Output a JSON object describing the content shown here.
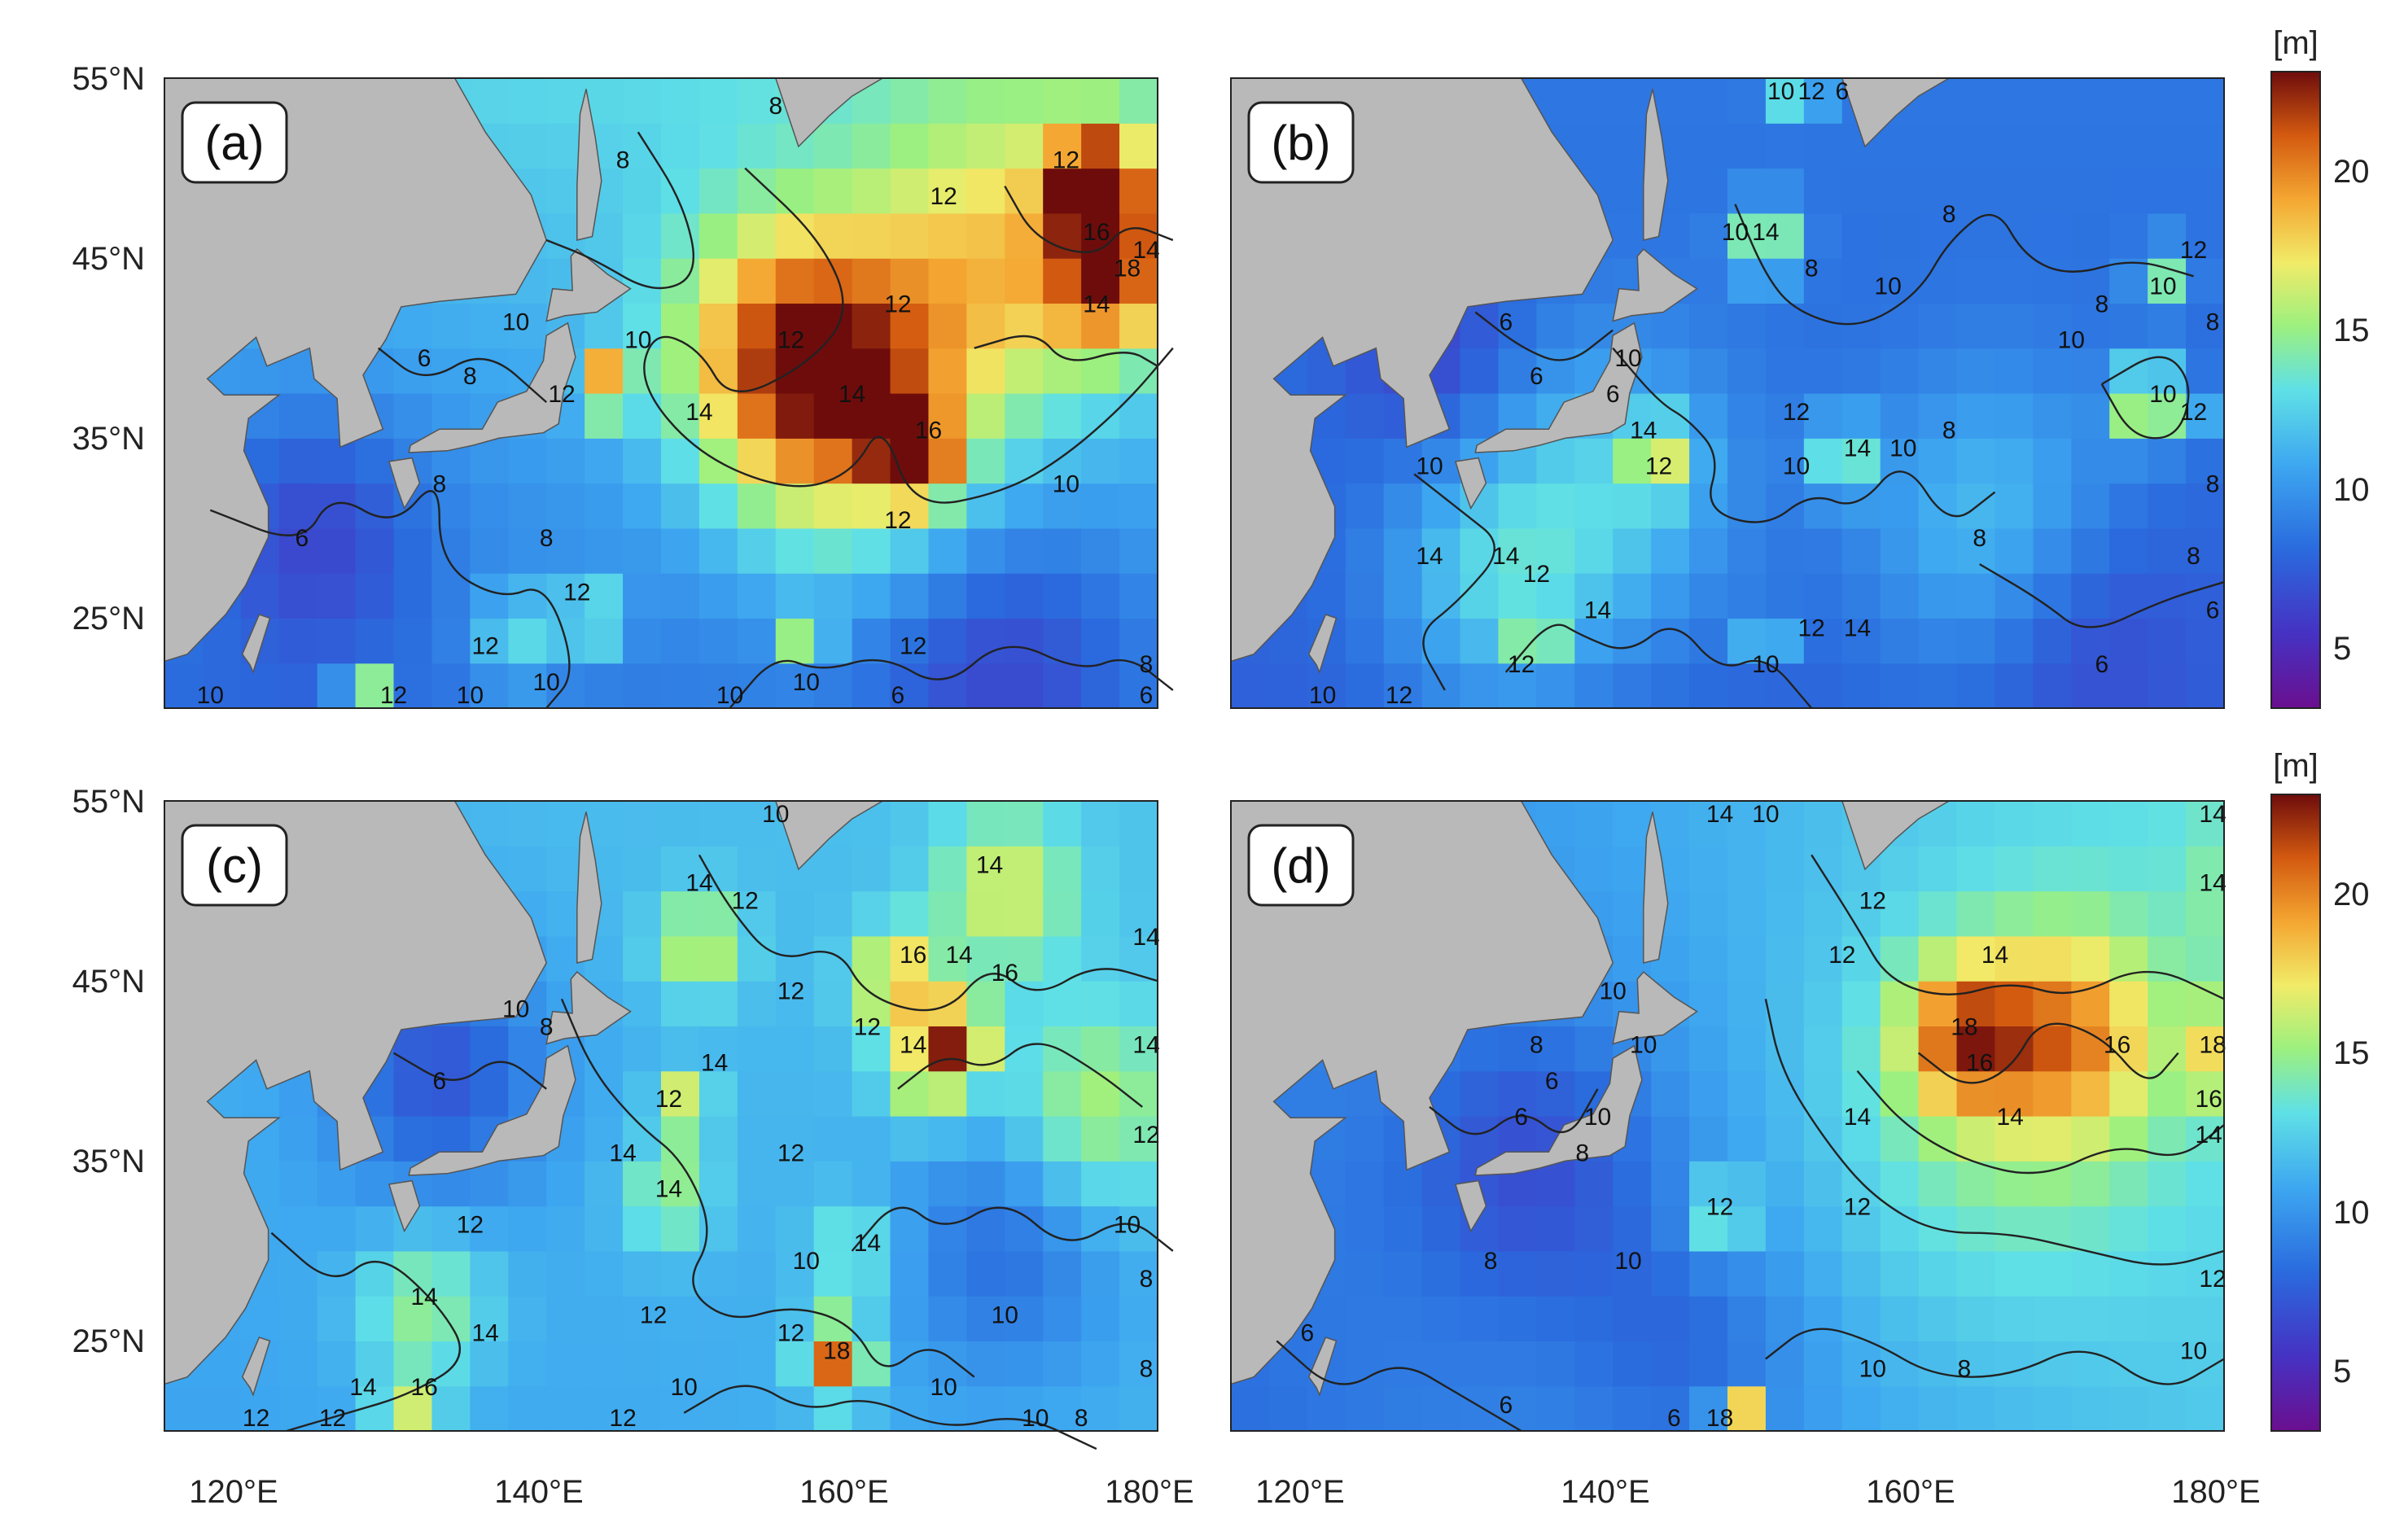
{
  "figure": {
    "lat_labels": [
      "55°N",
      "45°N",
      "35°N",
      "25°N"
    ],
    "lon_labels": [
      "120°E",
      "140°E",
      "160°E",
      "180°E"
    ],
    "colorbar": {
      "unit": "[m]",
      "ticks": [
        "20",
        "15",
        "10",
        "5"
      ],
      "range": [
        3,
        23
      ]
    },
    "panels": [
      {
        "label": "(a)",
        "contour_labels": [
          {
            "text": "8",
            "lon": 145,
            "lat": 50
          },
          {
            "text": "8",
            "lon": 155,
            "lat": 53
          },
          {
            "text": "12",
            "lon": 166,
            "lat": 48
          },
          {
            "text": "12",
            "lon": 174,
            "lat": 50
          },
          {
            "text": "12",
            "lon": 156,
            "lat": 40
          },
          {
            "text": "12",
            "lon": 163,
            "lat": 42
          },
          {
            "text": "14",
            "lon": 150,
            "lat": 36
          },
          {
            "text": "14",
            "lon": 160,
            "lat": 37
          },
          {
            "text": "16",
            "lon": 176,
            "lat": 46
          },
          {
            "text": "18",
            "lon": 178,
            "lat": 44
          },
          {
            "text": "14",
            "lon": 176,
            "lat": 42
          },
          {
            "text": "14",
            "lon": 180,
            "lat": 45
          },
          {
            "text": "16",
            "lon": 165,
            "lat": 35
          },
          {
            "text": "12",
            "lon": 163,
            "lat": 30
          },
          {
            "text": "10",
            "lon": 146,
            "lat": 40
          },
          {
            "text": "10",
            "lon": 138,
            "lat": 41
          },
          {
            "text": "12",
            "lon": 141,
            "lat": 37
          },
          {
            "text": "6",
            "lon": 132,
            "lat": 39
          },
          {
            "text": "8",
            "lon": 135,
            "lat": 38
          },
          {
            "text": "6",
            "lon": 124,
            "lat": 29
          },
          {
            "text": "8",
            "lon": 133,
            "lat": 32
          },
          {
            "text": "8",
            "lon": 140,
            "lat": 29
          },
          {
            "text": "12",
            "lon": 142,
            "lat": 26
          },
          {
            "text": "12",
            "lon": 136,
            "lat": 23
          },
          {
            "text": "12",
            "lon": 130,
            "lat": 20
          },
          {
            "text": "10",
            "lon": 140,
            "lat": 21
          },
          {
            "text": "10",
            "lon": 135,
            "lat": 20
          },
          {
            "text": "10",
            "lon": 152,
            "lat": 20
          },
          {
            "text": "10",
            "lon": 157,
            "lat": 21
          },
          {
            "text": "12",
            "lon": 164,
            "lat": 23
          },
          {
            "text": "6",
            "lon": 163,
            "lat": 18
          },
          {
            "text": "10",
            "lon": 174,
            "lat": 32
          },
          {
            "text": "8",
            "lon": 183,
            "lat": 22
          },
          {
            "text": "6",
            "lon": 180,
            "lat": 20
          },
          {
            "text": "10",
            "lon": 118,
            "lat": 19
          }
        ]
      },
      {
        "label": "(b)",
        "contour_labels": [
          {
            "text": "10",
            "lon": 151,
            "lat": 56
          },
          {
            "text": "12",
            "lon": 153,
            "lat": 55
          },
          {
            "text": "6",
            "lon": 155,
            "lat": 55
          },
          {
            "text": "10",
            "lon": 148,
            "lat": 46
          },
          {
            "text": "14",
            "lon": 150,
            "lat": 46
          },
          {
            "text": "8",
            "lon": 153,
            "lat": 44
          },
          {
            "text": "10",
            "lon": 158,
            "lat": 43
          },
          {
            "text": "8",
            "lon": 162,
            "lat": 47
          },
          {
            "text": "10",
            "lon": 141,
            "lat": 39
          },
          {
            "text": "6",
            "lon": 133,
            "lat": 41
          },
          {
            "text": "6",
            "lon": 135,
            "lat": 38
          },
          {
            "text": "6",
            "lon": 140,
            "lat": 37
          },
          {
            "text": "14",
            "lon": 142,
            "lat": 35
          },
          {
            "text": "12",
            "lon": 143,
            "lat": 33
          },
          {
            "text": "12",
            "lon": 152,
            "lat": 36
          },
          {
            "text": "10",
            "lon": 152,
            "lat": 33
          },
          {
            "text": "14",
            "lon": 156,
            "lat": 34
          },
          {
            "text": "10",
            "lon": 159,
            "lat": 34
          },
          {
            "text": "8",
            "lon": 162,
            "lat": 35
          },
          {
            "text": "10",
            "lon": 170,
            "lat": 40
          },
          {
            "text": "10",
            "lon": 176,
            "lat": 43
          },
          {
            "text": "8",
            "lon": 172,
            "lat": 42
          },
          {
            "text": "12",
            "lon": 178,
            "lat": 45
          },
          {
            "text": "8",
            "lon": 180,
            "lat": 41
          },
          {
            "text": "10",
            "lon": 176,
            "lat": 37
          },
          {
            "text": "12",
            "lon": 178,
            "lat": 36
          },
          {
            "text": "8",
            "lon": 182,
            "lat": 32
          },
          {
            "text": "8",
            "lon": 178,
            "lat": 28
          },
          {
            "text": "8",
            "lon": 164,
            "lat": 29
          },
          {
            "text": "6",
            "lon": 182,
            "lat": 25
          },
          {
            "text": "6",
            "lon": 172,
            "lat": 22
          },
          {
            "text": "10",
            "lon": 128,
            "lat": 33
          },
          {
            "text": "14",
            "lon": 128,
            "lat": 28
          },
          {
            "text": "14",
            "lon": 133,
            "lat": 28
          },
          {
            "text": "12",
            "lon": 135,
            "lat": 27
          },
          {
            "text": "14",
            "lon": 139,
            "lat": 25
          },
          {
            "text": "12",
            "lon": 134,
            "lat": 22
          },
          {
            "text": "10",
            "lon": 150,
            "lat": 22
          },
          {
            "text": "12",
            "lon": 153,
            "lat": 24
          },
          {
            "text": "14",
            "lon": 156,
            "lat": 24
          },
          {
            "text": "12",
            "lon": 126,
            "lat": 19
          },
          {
            "text": "10",
            "lon": 121,
            "lat": 20
          }
        ]
      },
      {
        "label": "(c)",
        "contour_labels": [
          {
            "text": "10",
            "lon": 155,
            "lat": 54
          },
          {
            "text": "14",
            "lon": 150,
            "lat": 50
          },
          {
            "text": "12",
            "lon": 153,
            "lat": 49
          },
          {
            "text": "14",
            "lon": 169,
            "lat": 51
          },
          {
            "text": "14",
            "lon": 180,
            "lat": 47
          },
          {
            "text": "16",
            "lon": 164,
            "lat": 46
          },
          {
            "text": "14",
            "lon": 167,
            "lat": 46
          },
          {
            "text": "16",
            "lon": 170,
            "lat": 45
          },
          {
            "text": "12",
            "lon": 156,
            "lat": 44
          },
          {
            "text": "12",
            "lon": 161,
            "lat": 42
          },
          {
            "text": "14",
            "lon": 164,
            "lat": 41
          },
          {
            "text": "14",
            "lon": 180,
            "lat": 41
          },
          {
            "text": "12",
            "lon": 180,
            "lat": 36
          },
          {
            "text": "10",
            "lon": 178,
            "lat": 31
          },
          {
            "text": "8",
            "lon": 180,
            "lat": 28
          },
          {
            "text": "10",
            "lon": 138,
            "lat": 43
          },
          {
            "text": "8",
            "lon": 140,
            "lat": 42
          },
          {
            "text": "6",
            "lon": 133,
            "lat": 39
          },
          {
            "text": "12",
            "lon": 148,
            "lat": 38
          },
          {
            "text": "14",
            "lon": 151,
            "lat": 40
          },
          {
            "text": "12",
            "lon": 156,
            "lat": 35
          },
          {
            "text": "14",
            "lon": 145,
            "lat": 35
          },
          {
            "text": "14",
            "lon": 148,
            "lat": 33
          },
          {
            "text": "12",
            "lon": 135,
            "lat": 31
          },
          {
            "text": "14",
            "lon": 136,
            "lat": 25
          },
          {
            "text": "12",
            "lon": 147,
            "lat": 26
          },
          {
            "text": "10",
            "lon": 157,
            "lat": 29
          },
          {
            "text": "14",
            "lon": 161,
            "lat": 30
          },
          {
            "text": "12",
            "lon": 156,
            "lat": 25
          },
          {
            "text": "18",
            "lon": 159,
            "lat": 24
          },
          {
            "text": "10",
            "lon": 170,
            "lat": 26
          },
          {
            "text": "10",
            "lon": 166,
            "lat": 22
          },
          {
            "text": "10",
            "lon": 149,
            "lat": 22
          },
          {
            "text": "12",
            "lon": 145,
            "lat": 20
          },
          {
            "text": "10",
            "lon": 172,
            "lat": 20
          },
          {
            "text": "8",
            "lon": 175,
            "lat": 19
          },
          {
            "text": "14",
            "lon": 128,
            "lat": 22
          },
          {
            "text": "16",
            "lon": 132,
            "lat": 22
          },
          {
            "text": "12",
            "lon": 121,
            "lat": 20
          },
          {
            "text": "12",
            "lon": 126,
            "lat": 19
          },
          {
            "text": "8",
            "lon": 186,
            "lat": 23
          },
          {
            "text": "14",
            "lon": 132,
            "lat": 27
          }
        ]
      },
      {
        "label": "(d)",
        "contour_labels": [
          {
            "text": "14",
            "lon": 147,
            "lat": 56
          },
          {
            "text": "10",
            "lon": 150,
            "lat": 55
          },
          {
            "text": "14",
            "lon": 184,
            "lat": 55
          },
          {
            "text": "12",
            "lon": 157,
            "lat": 49
          },
          {
            "text": "14",
            "lon": 183,
            "lat": 50
          },
          {
            "text": "12",
            "lon": 155,
            "lat": 46
          },
          {
            "text": "14",
            "lon": 165,
            "lat": 46
          },
          {
            "text": "18",
            "lon": 163,
            "lat": 42
          },
          {
            "text": "16",
            "lon": 164,
            "lat": 40
          },
          {
            "text": "16",
            "lon": 173,
            "lat": 41
          },
          {
            "text": "18",
            "lon": 181,
            "lat": 41
          },
          {
            "text": "16",
            "lon": 179,
            "lat": 38
          },
          {
            "text": "14",
            "lon": 179,
            "lat": 36
          },
          {
            "text": "14",
            "lon": 166,
            "lat": 37
          },
          {
            "text": "14",
            "lon": 156,
            "lat": 37
          },
          {
            "text": "12",
            "lon": 156,
            "lat": 32
          },
          {
            "text": "12",
            "lon": 181,
            "lat": 28
          },
          {
            "text": "10",
            "lon": 178,
            "lat": 24
          },
          {
            "text": "10",
            "lon": 140,
            "lat": 44
          },
          {
            "text": "8",
            "lon": 135,
            "lat": 41
          },
          {
            "text": "10",
            "lon": 142,
            "lat": 41
          },
          {
            "text": "6",
            "lon": 136,
            "lat": 39
          },
          {
            "text": "10",
            "lon": 139,
            "lat": 37
          },
          {
            "text": "6",
            "lon": 134,
            "lat": 37
          },
          {
            "text": "8",
            "lon": 138,
            "lat": 35
          },
          {
            "text": "12",
            "lon": 147,
            "lat": 32
          },
          {
            "text": "10",
            "lon": 141,
            "lat": 29
          },
          {
            "text": "8",
            "lon": 132,
            "lat": 29
          },
          {
            "text": "6",
            "lon": 120,
            "lat": 25
          },
          {
            "text": "6",
            "lon": 133,
            "lat": 21
          },
          {
            "text": "6",
            "lon": 144,
            "lat": 19
          },
          {
            "text": "10",
            "lon": 157,
            "lat": 23
          },
          {
            "text": "8",
            "lon": 163,
            "lat": 23
          },
          {
            "text": "18",
            "lon": 147,
            "lat": 20
          }
        ]
      }
    ]
  }
}
